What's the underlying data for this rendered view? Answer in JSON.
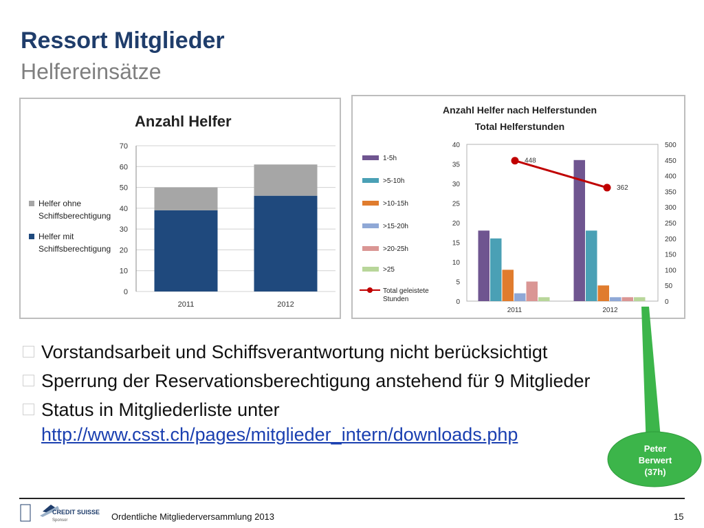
{
  "header": {
    "title": "Ressort Mitglieder",
    "subtitle": "Helfereinsätze"
  },
  "chart_data": [
    {
      "type": "bar",
      "stacked": true,
      "title": "Anzahl Helfer",
      "categories": [
        "2011",
        "2012"
      ],
      "series": [
        {
          "name": "Helfer mit Schiffsberechtigung",
          "values": [
            39,
            46
          ],
          "color": "#1f497d"
        },
        {
          "name": "Helfer ohne Schiffsberechtigung",
          "values": [
            11,
            15
          ],
          "color": "#a6a6a6"
        }
      ],
      "legend_lines": [
        [
          "Helfer ohne",
          "Schiffsberechtigung"
        ],
        [
          "Helfer mit",
          "Schiffsberechtigung"
        ]
      ],
      "ylim": [
        0,
        70
      ],
      "yticks": [
        0,
        10,
        20,
        30,
        40,
        50,
        60,
        70
      ],
      "grid": true,
      "legend_position": "left"
    },
    {
      "type": "bar",
      "title": "Anzahl Helfer nach Helferstunden",
      "subtitle": "Total Helferstunden",
      "categories": [
        "2011",
        "2012"
      ],
      "series": [
        {
          "name": "1-5h",
          "values": [
            18,
            36
          ],
          "color": "#6f5590"
        },
        {
          "name": ">5-10h",
          "values": [
            16,
            18
          ],
          "color": "#4aa0b5"
        },
        {
          "name": ">10-15h",
          "values": [
            8,
            4
          ],
          "color": "#e07c2e"
        },
        {
          "name": ">15-20h",
          "values": [
            2,
            1
          ],
          "color": "#8fa8d6"
        },
        {
          "name": ">20-25h",
          "values": [
            5,
            1
          ],
          "color": "#da9694"
        },
        {
          "name": ">25",
          "values": [
            1,
            1
          ],
          "color": "#b8d69a"
        }
      ],
      "line_series": {
        "name_lines": [
          "Total geleistete",
          "Stunden"
        ],
        "values": [
          448,
          362
        ],
        "color": "#c00000",
        "labels": [
          "448",
          "362"
        ]
      },
      "ylim": [
        0,
        40
      ],
      "yticks": [
        0,
        5,
        10,
        15,
        20,
        25,
        30,
        35,
        40
      ],
      "y2lim": [
        0,
        500
      ],
      "y2ticks": [
        0,
        50,
        100,
        150,
        200,
        250,
        300,
        350,
        400,
        450,
        500
      ],
      "grid": false,
      "legend_position": "left"
    }
  ],
  "bullets": [
    {
      "text": "Vorstandsarbeit  und Schiffsverantwortung nicht berücksichtigt"
    },
    {
      "text": "Sperrung der Reservationsberechtigung anstehend für 9 Mitglieder"
    },
    {
      "text": "Status in Mitgliederliste unter",
      "link": "http://www.csst.ch/pages/mitglieder_intern/downloads.php"
    }
  ],
  "callout": {
    "line1": "Peter",
    "line2": "Berwert",
    "line3": "(37h)",
    "color": "#3cb54a"
  },
  "footer": {
    "text": "Ordentliche Mitgliederversammlung 2013",
    "page": "15"
  },
  "logo": {
    "brand": "CREDIT SUISSE",
    "tag": "Sponsor"
  }
}
